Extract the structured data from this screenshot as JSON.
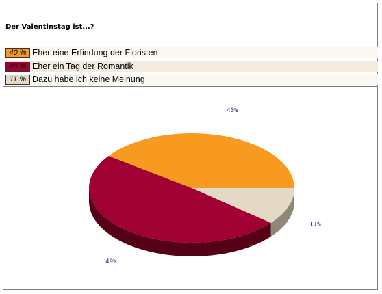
{
  "chart_data": {
    "type": "pie",
    "title": "Der Valentinstag ist...?",
    "categories": [
      "Eher eine Erfindung der Floristen",
      "Eher ein Tag der Romantik",
      "Dazu habe ich keine Meinung"
    ],
    "values": [
      40,
      49,
      11
    ],
    "value_labels": [
      "40 %",
      "49 %",
      "11 %"
    ],
    "slice_labels": [
      "40%",
      "49%",
      "11%"
    ],
    "colors": [
      "#f79a1f",
      "#a10032",
      "#e3d9c5"
    ],
    "side_colors": [
      "#a5650e",
      "#560018",
      "#8f8777"
    ],
    "legend_row_colors": [
      "#fbf8f2",
      "#f3ebde",
      "#fbf8f2"
    ],
    "legend": "top-left"
  }
}
